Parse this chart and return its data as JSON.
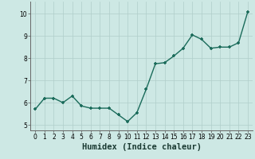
{
  "x": [
    0,
    1,
    2,
    3,
    4,
    5,
    6,
    7,
    8,
    9,
    10,
    11,
    12,
    13,
    14,
    15,
    16,
    17,
    18,
    19,
    20,
    21,
    22,
    23
  ],
  "y": [
    5.7,
    6.2,
    6.2,
    6.0,
    6.3,
    5.85,
    5.75,
    5.75,
    5.75,
    5.45,
    5.15,
    5.55,
    6.6,
    7.75,
    7.8,
    8.1,
    8.45,
    9.05,
    8.85,
    8.45,
    8.5,
    8.5,
    8.7,
    10.1
  ],
  "line_color": "#1a6b5a",
  "marker_color": "#1a6b5a",
  "bg_color": "#cde8e4",
  "grid_color": "#b0ceca",
  "xlabel": "Humidex (Indice chaleur)",
  "xlim": [
    -0.5,
    23.5
  ],
  "ylim": [
    4.75,
    10.55
  ],
  "yticks": [
    5,
    6,
    7,
    8,
    9,
    10
  ],
  "xticks": [
    0,
    1,
    2,
    3,
    4,
    5,
    6,
    7,
    8,
    9,
    10,
    11,
    12,
    13,
    14,
    15,
    16,
    17,
    18,
    19,
    20,
    21,
    22,
    23
  ],
  "tick_fontsize": 5.5,
  "label_fontsize": 7.5,
  "line_width": 1.0,
  "marker_size": 3.5
}
